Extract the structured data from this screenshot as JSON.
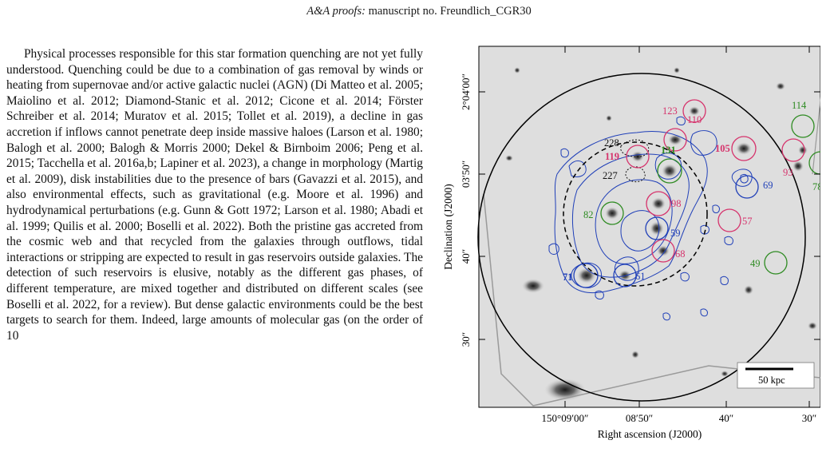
{
  "header": {
    "journal": "A&A proofs:",
    "manuscript": "manuscript no. Freundlich_CGR30"
  },
  "paragraph": "Physical processes responsible for this star formation quenching are not yet fully understood. Quenching could be due to a combination of gas removal by winds or heating from supernovae and/or active galactic nuclei (AGN) (Di Matteo et al. 2005; Maiolino et al. 2012; Diamond-Stanic et al. 2012; Cicone et al. 2014; Förster Schreiber et al. 2014; Muratov et al. 2015; Tollet et al. 2019), a decline in gas accretion if inflows cannot penetrate deep inside massive haloes (Larson et al. 1980; Balogh et al. 2000; Balogh & Morris 2000; Dekel & Birnboim 2006; Peng et al. 2015; Tacchella et al. 2016a,b; Lapiner et al. 2023), a change in morphology (Martig et al. 2009), disk instabilities due to the presence of bars (Gavazzi et al. 2015), and also environmental effects, such as gravitational (e.g. Moore et al. 1996) and hydrodynamical perturbations (e.g. Gunn & Gott 1972; Larson et al. 1980; Abadi et al. 1999; Quilis et al. 2000; Boselli et al. 2022). Both the pristine gas accreted from the cosmic web and that recycled from the galaxies through outflows, tidal interactions or stripping are expected to result in gas reservoirs outside galaxies. The detection of such reservoirs is elusive, notably as the different gas phases, of different temperature, are mixed together and distributed on different scales (see Boselli et al. 2022, for a review). But dense galactic environments could be the best targets to search for them. Indeed, large amounts of molecular gas (on the order of 10",
  "figure": {
    "xlabel": "Right ascension (J2000)",
    "ylabel": "Declination (J2000)",
    "xticks": [
      "150°09′00″",
      "08′50″",
      "40″",
      "30″"
    ],
    "yticks": [
      "2°04′00″",
      "03′50″",
      "40″",
      "30″"
    ],
    "scalebar": "50 kpc",
    "colors": {
      "pink": "#d6336c",
      "green": "#2e8b22",
      "blue": "#1f3fb8",
      "black": "#111111"
    },
    "labels": {
      "l123": "123",
      "l110": "110",
      "l114": "114",
      "l105": "105",
      "l93": "93",
      "l78": "78",
      "l69": "69",
      "l228": "228",
      "l119": "119",
      "l131": "131",
      "l227": "227",
      "l98": "98",
      "l82": "82",
      "l57": "57",
      "l59": "59",
      "l68": "68",
      "l49": "49",
      "l71": "71",
      "l61": "61"
    }
  }
}
